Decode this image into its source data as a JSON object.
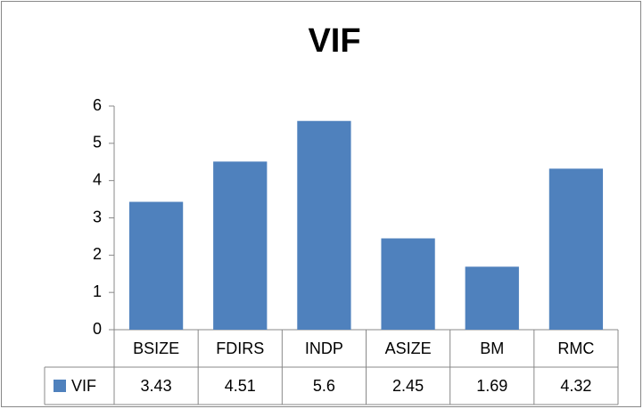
{
  "chart_data": {
    "type": "bar",
    "title": "VIF",
    "categories": [
      "BSIZE",
      "FDIRS",
      "INDP",
      "ASIZE",
      "BM",
      "RMC"
    ],
    "series": [
      {
        "name": "VIF",
        "color": "#4f81bd",
        "values": [
          3.43,
          4.51,
          5.6,
          2.45,
          1.69,
          4.32
        ]
      }
    ],
    "ylim": [
      0,
      6
    ],
    "yticks": [
      0,
      1,
      2,
      3,
      4,
      5,
      6
    ],
    "grid": false,
    "data_table": true
  }
}
